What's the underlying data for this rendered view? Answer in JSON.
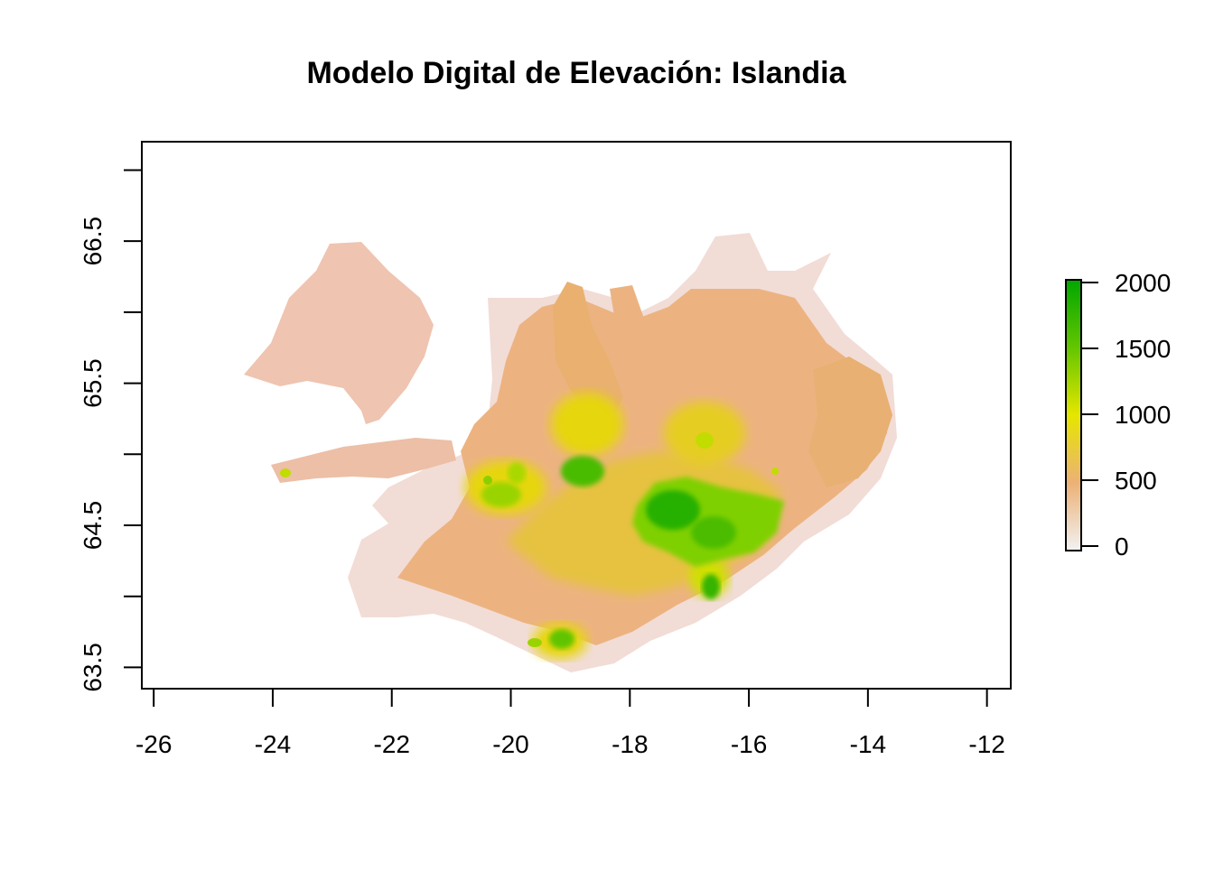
{
  "title": "Modelo Digital de Elevación: Islandia",
  "chart_data": {
    "type": "heatmap",
    "title": "Modelo Digital de Elevación: Islandia",
    "xlabel": "",
    "ylabel": "",
    "xlim": [
      -26.2,
      -11.6
    ],
    "ylim": [
      63.35,
      67.2
    ],
    "x_ticks": [
      -26,
      -24,
      -22,
      -20,
      -18,
      -16,
      -14,
      -12
    ],
    "x_tick_labels": [
      "-26",
      "-24",
      "-22",
      "-20",
      "-18",
      "-16",
      "-14",
      "-12"
    ],
    "y_ticks": [
      63.5,
      64.0,
      64.5,
      65.0,
      65.5,
      66.0,
      66.5,
      67.0
    ],
    "y_tick_labels": [
      "63.5",
      "",
      "64.5",
      "",
      "65.5",
      "",
      "66.5",
      ""
    ],
    "legend": {
      "ticks": [
        0,
        500,
        1000,
        1500,
        2000
      ],
      "tick_labels": [
        "0",
        "500",
        "1000",
        "1500",
        "2000"
      ],
      "range": [
        0,
        2000
      ],
      "placement": "right",
      "colors": [
        "#f2f2f2",
        "#ecb176",
        "#e6e600",
        "#63c600",
        "#00a600"
      ]
    },
    "grid": false
  }
}
